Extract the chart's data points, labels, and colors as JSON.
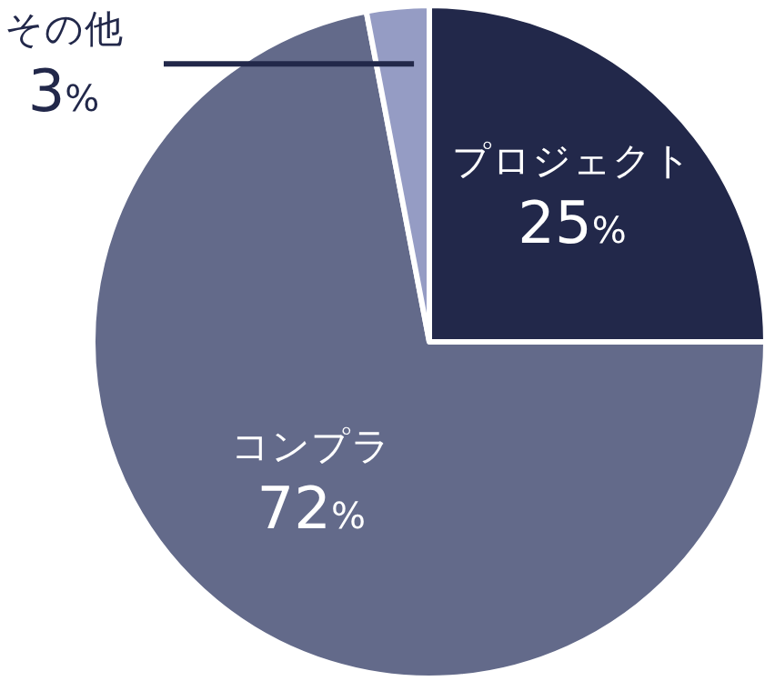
{
  "chart_data": {
    "type": "pie",
    "categories": [
      "プロジェクト",
      "コンプラ",
      "その他"
    ],
    "values": [
      25,
      72,
      3
    ],
    "colors": [
      "#22284a",
      "#636a8a",
      "#959cc4"
    ],
    "value_labels": [
      "25%",
      "72%",
      "3%"
    ]
  }
}
